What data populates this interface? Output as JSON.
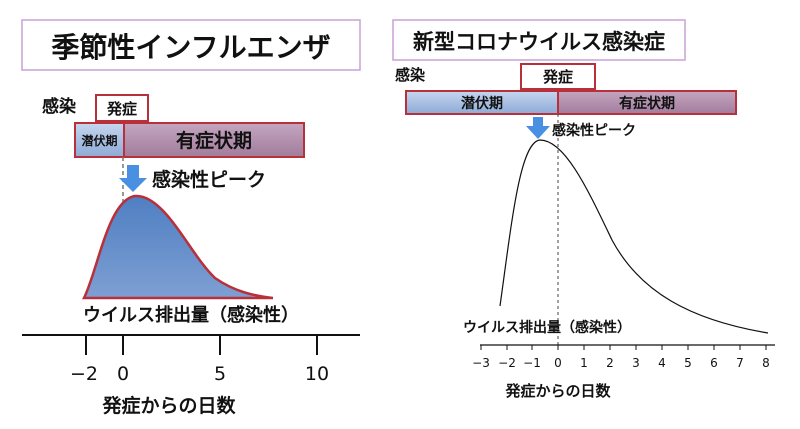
{
  "left": {
    "title": "季節性インフルエンザ",
    "infection_label": "感染",
    "onset_label": "発症",
    "incubation_label": "潜伏期",
    "symptomatic_label": "有症状期",
    "peak_label": "感染性ピーク",
    "curve_label": "ウイルス排出量（感染性）",
    "xlabel": "発症からの日数",
    "ticks": [
      "−2",
      "0",
      "5",
      "10"
    ],
    "colors": {
      "incubation": "#a9bfe0",
      "symptomatic": "#b38fae",
      "border": "#b8303a",
      "curve_fill": "#5b86c4",
      "arrow": "#4a90e2",
      "title_border": "#c9a0d6"
    }
  },
  "right": {
    "title": "新型コロナウイルス感染症",
    "infection_label": "感染",
    "onset_label": "発症",
    "incubation_label": "潜伏期",
    "symptomatic_label": "有症状期",
    "peak_label": "感染性ピーク",
    "curve_label": "ウイルス排出量（感染性）",
    "xlabel": "発症からの日数",
    "ticks": [
      "−3",
      "−2",
      "−1",
      "0",
      "1",
      "2",
      "3",
      "4",
      "5",
      "6",
      "7",
      "8"
    ],
    "colors": {
      "incubation": "#a9bfe0",
      "symptomatic": "#b38fae",
      "border": "#b8303a",
      "arrow": "#4a90e2",
      "title_border": "#c9a0d6"
    }
  }
}
